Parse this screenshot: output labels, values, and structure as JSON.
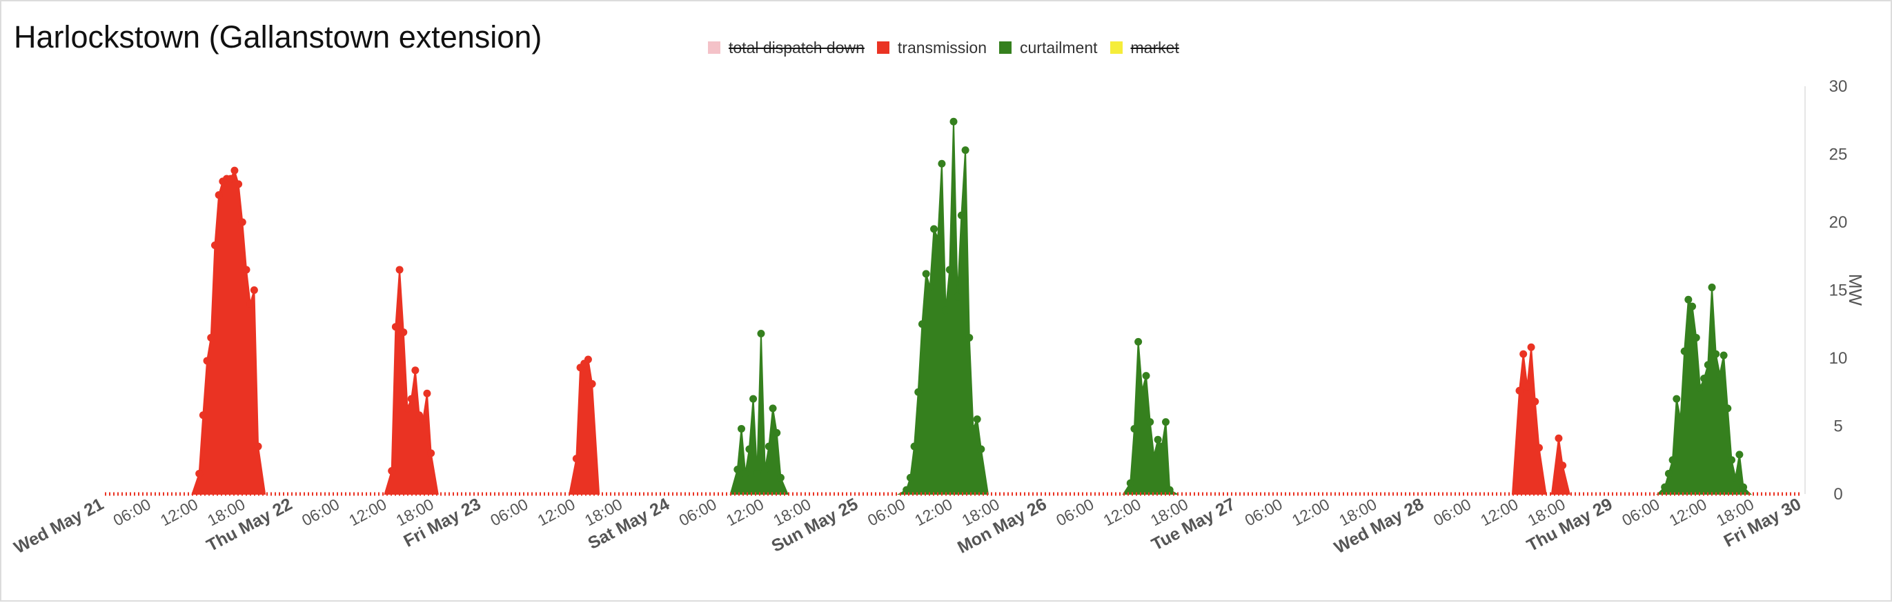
{
  "chart_data": {
    "type": "area",
    "title": "Harlockstown (Gallanstown extension)",
    "ylabel": "MW",
    "xlabel": "",
    "ylim": [
      0,
      30
    ],
    "y_ticks": [
      "0",
      "5",
      "10",
      "15",
      "20",
      "25",
      "30"
    ],
    "x_range": [
      "2025-05-21T00:00",
      "2025-05-30T00:00"
    ],
    "x_ticks": [
      {
        "t": "2025-05-21T00:00",
        "label": "Wed May 21",
        "major": true
      },
      {
        "t": "2025-05-21T06:00",
        "label": "06:00",
        "major": false
      },
      {
        "t": "2025-05-21T12:00",
        "label": "12:00",
        "major": false
      },
      {
        "t": "2025-05-21T18:00",
        "label": "18:00",
        "major": false
      },
      {
        "t": "2025-05-22T00:00",
        "label": "Thu May 22",
        "major": true
      },
      {
        "t": "2025-05-22T06:00",
        "label": "06:00",
        "major": false
      },
      {
        "t": "2025-05-22T12:00",
        "label": "12:00",
        "major": false
      },
      {
        "t": "2025-05-22T18:00",
        "label": "18:00",
        "major": false
      },
      {
        "t": "2025-05-23T00:00",
        "label": "Fri May 23",
        "major": true
      },
      {
        "t": "2025-05-23T06:00",
        "label": "06:00",
        "major": false
      },
      {
        "t": "2025-05-23T12:00",
        "label": "12:00",
        "major": false
      },
      {
        "t": "2025-05-23T18:00",
        "label": "18:00",
        "major": false
      },
      {
        "t": "2025-05-24T00:00",
        "label": "Sat May 24",
        "major": true
      },
      {
        "t": "2025-05-24T06:00",
        "label": "06:00",
        "major": false
      },
      {
        "t": "2025-05-24T12:00",
        "label": "12:00",
        "major": false
      },
      {
        "t": "2025-05-24T18:00",
        "label": "18:00",
        "major": false
      },
      {
        "t": "2025-05-25T00:00",
        "label": "Sun May 25",
        "major": true
      },
      {
        "t": "2025-05-25T06:00",
        "label": "06:00",
        "major": false
      },
      {
        "t": "2025-05-25T12:00",
        "label": "12:00",
        "major": false
      },
      {
        "t": "2025-05-25T18:00",
        "label": "18:00",
        "major": false
      },
      {
        "t": "2025-05-26T00:00",
        "label": "Mon May 26",
        "major": true
      },
      {
        "t": "2025-05-26T06:00",
        "label": "06:00",
        "major": false
      },
      {
        "t": "2025-05-26T12:00",
        "label": "12:00",
        "major": false
      },
      {
        "t": "2025-05-26T18:00",
        "label": "18:00",
        "major": false
      },
      {
        "t": "2025-05-27T00:00",
        "label": "Tue May 27",
        "major": true
      },
      {
        "t": "2025-05-27T06:00",
        "label": "06:00",
        "major": false
      },
      {
        "t": "2025-05-27T12:00",
        "label": "12:00",
        "major": false
      },
      {
        "t": "2025-05-27T18:00",
        "label": "18:00",
        "major": false
      },
      {
        "t": "2025-05-28T00:00",
        "label": "Wed May 28",
        "major": true
      },
      {
        "t": "2025-05-28T06:00",
        "label": "06:00",
        "major": false
      },
      {
        "t": "2025-05-28T12:00",
        "label": "12:00",
        "major": false
      },
      {
        "t": "2025-05-28T18:00",
        "label": "18:00",
        "major": false
      },
      {
        "t": "2025-05-29T00:00",
        "label": "Thu May 29",
        "major": true
      },
      {
        "t": "2025-05-29T06:00",
        "label": "06:00",
        "major": false
      },
      {
        "t": "2025-05-29T12:00",
        "label": "12:00",
        "major": false
      },
      {
        "t": "2025-05-29T18:00",
        "label": "18:00",
        "major": false
      },
      {
        "t": "2025-05-30T00:00",
        "label": "Fri May 30",
        "major": true
      }
    ],
    "legend": {
      "placement": "top-center"
    },
    "series": [
      {
        "name": "total dispatch down",
        "color": "#f4c2c8",
        "visible": false,
        "points": []
      },
      {
        "name": "transmission",
        "color": "#ea3323",
        "visible": true,
        "points": [
          [
            "2025-05-21T12:00",
            1.5
          ],
          [
            "2025-05-21T12:30",
            5.8
          ],
          [
            "2025-05-21T13:00",
            9.8
          ],
          [
            "2025-05-21T13:30",
            11.5
          ],
          [
            "2025-05-21T14:00",
            18.3
          ],
          [
            "2025-05-21T14:30",
            22
          ],
          [
            "2025-05-21T15:00",
            23
          ],
          [
            "2025-05-21T15:30",
            23.2
          ],
          [
            "2025-05-21T16:00",
            23.2
          ],
          [
            "2025-05-21T16:30",
            23.8
          ],
          [
            "2025-05-21T17:00",
            22.8
          ],
          [
            "2025-05-21T17:30",
            20
          ],
          [
            "2025-05-21T18:00",
            16.5
          ],
          [
            "2025-05-21T18:30",
            14
          ],
          [
            "2025-05-21T19:00",
            15
          ],
          [
            "2025-05-21T19:30",
            3.5
          ],
          [
            "2025-05-22T12:30",
            1.7
          ],
          [
            "2025-05-22T13:00",
            12.3
          ],
          [
            "2025-05-22T13:30",
            16.5
          ],
          [
            "2025-05-22T14:00",
            11.9
          ],
          [
            "2025-05-22T14:30",
            6.3
          ],
          [
            "2025-05-22T15:00",
            7
          ],
          [
            "2025-05-22T15:30",
            9.1
          ],
          [
            "2025-05-22T16:00",
            5.8
          ],
          [
            "2025-05-22T16:30",
            5.5
          ],
          [
            "2025-05-22T17:00",
            7.4
          ],
          [
            "2025-05-22T17:30",
            3
          ],
          [
            "2025-05-23T12:00",
            2.6
          ],
          [
            "2025-05-23T12:30",
            9.3
          ],
          [
            "2025-05-23T13:00",
            9.6
          ],
          [
            "2025-05-23T13:30",
            9.9
          ],
          [
            "2025-05-23T14:00",
            8.1
          ],
          [
            "2025-05-28T12:00",
            7.6
          ],
          [
            "2025-05-28T12:30",
            10.3
          ],
          [
            "2025-05-28T13:00",
            7.9
          ],
          [
            "2025-05-28T13:30",
            10.8
          ],
          [
            "2025-05-28T14:00",
            6.8
          ],
          [
            "2025-05-28T14:30",
            3.4
          ],
          [
            "2025-05-28T17:00",
            4.1
          ],
          [
            "2025-05-28T17:30",
            2.1
          ]
        ]
      },
      {
        "name": "curtailment",
        "color": "#35801e",
        "visible": true,
        "points": [
          [
            "2025-05-24T08:30",
            1.8
          ],
          [
            "2025-05-24T09:00",
            4.8
          ],
          [
            "2025-05-24T09:30",
            1.5
          ],
          [
            "2025-05-24T10:00",
            3.3
          ],
          [
            "2025-05-24T10:30",
            7
          ],
          [
            "2025-05-24T11:00",
            1.5
          ],
          [
            "2025-05-24T11:30",
            11.8
          ],
          [
            "2025-05-24T12:00",
            1.8
          ],
          [
            "2025-05-24T12:30",
            3.5
          ],
          [
            "2025-05-24T13:00",
            6.3
          ],
          [
            "2025-05-24T13:30",
            4.5
          ],
          [
            "2025-05-24T14:00",
            1.2
          ],
          [
            "2025-05-25T06:00",
            0.3
          ],
          [
            "2025-05-25T06:30",
            1.2
          ],
          [
            "2025-05-25T07:00",
            3.5
          ],
          [
            "2025-05-25T07:30",
            7.5
          ],
          [
            "2025-05-25T08:00",
            12.5
          ],
          [
            "2025-05-25T08:30",
            16.2
          ],
          [
            "2025-05-25T09:00",
            15.2
          ],
          [
            "2025-05-25T09:30",
            19.5
          ],
          [
            "2025-05-25T10:00",
            18.8
          ],
          [
            "2025-05-25T10:30",
            24.3
          ],
          [
            "2025-05-25T11:00",
            13.5
          ],
          [
            "2025-05-25T11:30",
            16.5
          ],
          [
            "2025-05-25T12:00",
            27.4
          ],
          [
            "2025-05-25T12:30",
            14.5
          ],
          [
            "2025-05-25T13:00",
            20.5
          ],
          [
            "2025-05-25T13:30",
            25.3
          ],
          [
            "2025-05-25T14:00",
            11.5
          ],
          [
            "2025-05-25T14:30",
            4.8
          ],
          [
            "2025-05-25T15:00",
            5.5
          ],
          [
            "2025-05-25T15:30",
            3.3
          ],
          [
            "2025-05-26T10:30",
            0.8
          ],
          [
            "2025-05-26T11:00",
            4.8
          ],
          [
            "2025-05-26T11:30",
            11.2
          ],
          [
            "2025-05-26T12:00",
            7.6
          ],
          [
            "2025-05-26T12:30",
            8.7
          ],
          [
            "2025-05-26T13:00",
            5.3
          ],
          [
            "2025-05-26T13:30",
            2.8
          ],
          [
            "2025-05-26T14:00",
            4
          ],
          [
            "2025-05-26T14:30",
            3.5
          ],
          [
            "2025-05-26T15:00",
            5.3
          ],
          [
            "2025-05-26T15:30",
            0.3
          ],
          [
            "2025-05-29T06:30",
            0.5
          ],
          [
            "2025-05-29T07:00",
            1.5
          ],
          [
            "2025-05-29T07:30",
            2.5
          ],
          [
            "2025-05-29T08:00",
            7
          ],
          [
            "2025-05-29T08:30",
            5.5
          ],
          [
            "2025-05-29T09:00",
            10.5
          ],
          [
            "2025-05-29T09:30",
            14.3
          ],
          [
            "2025-05-29T10:00",
            13.8
          ],
          [
            "2025-05-29T10:30",
            11.5
          ],
          [
            "2025-05-29T11:00",
            7.8
          ],
          [
            "2025-05-29T11:30",
            8.5
          ],
          [
            "2025-05-29T12:00",
            9.5
          ],
          [
            "2025-05-29T12:30",
            15.2
          ],
          [
            "2025-05-29T13:00",
            10.3
          ],
          [
            "2025-05-29T13:30",
            8.8
          ],
          [
            "2025-05-29T14:00",
            10.2
          ],
          [
            "2025-05-29T14:30",
            6.3
          ],
          [
            "2025-05-29T15:00",
            2.5
          ],
          [
            "2025-05-29T15:30",
            1.2
          ],
          [
            "2025-05-29T16:00",
            2.9
          ],
          [
            "2025-05-29T16:30",
            0.5
          ]
        ]
      },
      {
        "name": "market",
        "color": "#f5ed3a",
        "visible": false,
        "points": []
      }
    ]
  }
}
